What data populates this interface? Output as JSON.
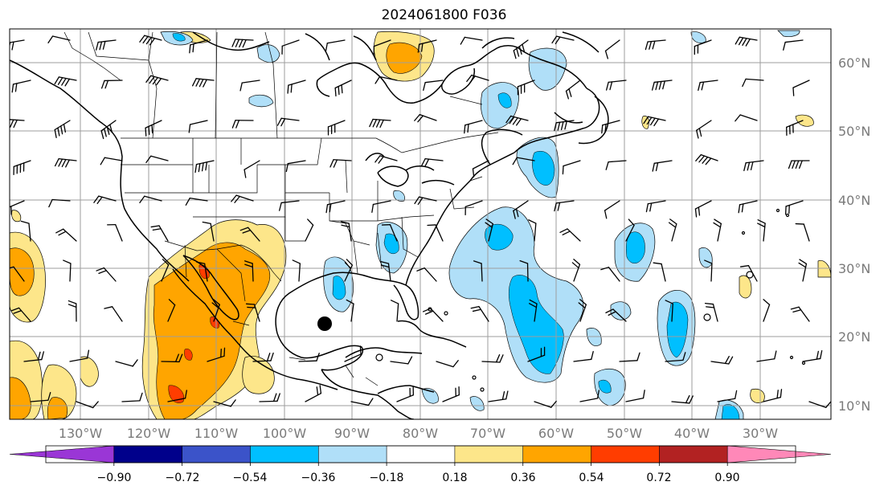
{
  "title": "2024061800 F036",
  "lon_ticks": [
    "130°W",
    "120°W",
    "110°W",
    "100°W",
    "90°W",
    "80°W",
    "70°W",
    "60°W",
    "50°W",
    "40°W",
    "30°W"
  ],
  "lat_ticks": [
    "60°N",
    "50°N",
    "40°N",
    "30°N",
    "20°N",
    "10°N"
  ],
  "colorbar": {
    "labels": [
      "−0.90",
      "−0.72",
      "−0.54",
      "−0.36",
      "−0.18",
      "0.18",
      "0.36",
      "0.54",
      "0.72",
      "0.90"
    ],
    "colors": [
      "#9a36d6",
      "#00008b",
      "#3b53c9",
      "#00bfff",
      "#b0dff8",
      "#ffffff",
      "#fde68a",
      "#ffa500",
      "#ff3d00",
      "#b22222",
      "#ff88b8"
    ]
  },
  "colors": {
    "yellow": "#fde68a",
    "orange": "#ffa500",
    "red": "#ff3d00",
    "lightblue": "#b0dff8",
    "blue": "#00bfff",
    "grid": "#9e9e9e",
    "tick_text": "#7a7a7a"
  },
  "chart_data": {
    "type": "map",
    "title": "2024061800 F036",
    "lon_range": [
      -137,
      -18
    ],
    "lat_range": [
      8,
      65
    ],
    "grid": true,
    "overlay": "wind barbs",
    "colorbar_levels": [
      -0.9,
      -0.72,
      -0.54,
      -0.36,
      -0.18,
      0.18,
      0.36,
      0.54,
      0.72,
      0.9
    ],
    "colorbar_extend": "both",
    "markers": [
      {
        "type": "filled-circle",
        "lon": -94,
        "lat": 21.7
      }
    ]
  }
}
